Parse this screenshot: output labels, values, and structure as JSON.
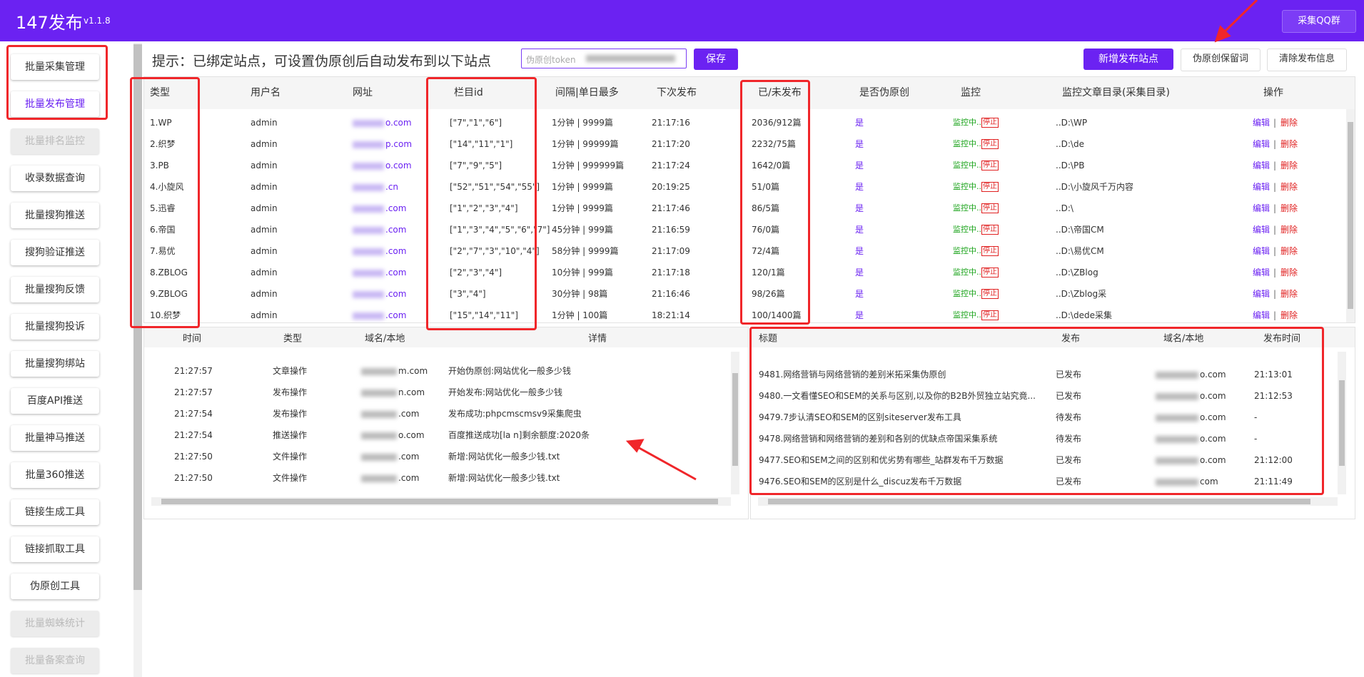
{
  "header": {
    "title": "147发布",
    "version": "v1.1.8",
    "qq_button": "采集QQ群"
  },
  "sidebar": [
    {
      "label": "批量采集管理",
      "disabled": false
    },
    {
      "label": "批量发布管理",
      "disabled": false
    },
    {
      "label": "批量排名监控",
      "disabled": true
    },
    {
      "label": "收录数据查询",
      "disabled": false
    },
    {
      "label": "批量搜狗推送",
      "disabled": false
    },
    {
      "label": "搜狗验证推送",
      "disabled": false
    },
    {
      "label": "批量搜狗反馈",
      "disabled": false
    },
    {
      "label": "批量搜狗投诉",
      "disabled": false
    },
    {
      "label": "批量搜狗绑站",
      "disabled": false
    },
    {
      "label": "百度API推送",
      "disabled": false
    },
    {
      "label": "批量神马推送",
      "disabled": false
    },
    {
      "label": "批量360推送",
      "disabled": false
    },
    {
      "label": "链接生成工具",
      "disabled": false
    },
    {
      "label": "链接抓取工具",
      "disabled": false
    },
    {
      "label": "伪原创工具",
      "disabled": false
    },
    {
      "label": "批量蜘蛛统计",
      "disabled": true
    },
    {
      "label": "批量备案查询",
      "disabled": true
    }
  ],
  "toolbar": {
    "hint": "提示：已绑定站点，可设置伪原创后自动发布到以下站点",
    "token_placeholder": "伪原创token",
    "save": "保存",
    "buttons": [
      "新增发布站点",
      "伪原创保留词",
      "清除发布信息"
    ]
  },
  "sites": {
    "headers": [
      "类型",
      "用户名",
      "网址",
      "栏目id",
      "间隔|单日最多",
      "下次发布",
      "已/未发布",
      "是否伪原创",
      "监控",
      "监控文章目录(采集目录)",
      "操作"
    ],
    "rows": [
      {
        "type": "1.WP",
        "user": "admin",
        "url": "o.com",
        "ids": "[\"7\",\"1\",\"6\"]",
        "interval": "1分钟 | 9999篇",
        "next": "21:17:16",
        "published": "2036/912篇",
        "pseudo": "是",
        "monitor": "监控中..",
        "stop": "停止",
        "dir": "..D:\\WP",
        "edit": "编辑",
        "sep": "|",
        "delete": "删除"
      },
      {
        "type": "2.织梦",
        "user": "admin",
        "url": "p.com",
        "ids": "[\"14\",\"11\",\"1\"]",
        "interval": "1分钟 | 99999篇",
        "next": "21:17:20",
        "published": "2232/75篇",
        "pseudo": "是",
        "monitor": "监控中..",
        "stop": "停止",
        "dir": "..D:\\de",
        "edit": "编辑",
        "sep": "|",
        "delete": "删除"
      },
      {
        "type": "3.PB",
        "user": "admin",
        "url": "o.com",
        "ids": "[\"7\",\"9\",\"5\"]",
        "interval": "1分钟 | 999999篇",
        "next": "21:17:24",
        "published": "1642/0篇",
        "pseudo": "是",
        "monitor": "监控中..",
        "stop": "停止",
        "dir": "..D:\\PB",
        "edit": "编辑",
        "sep": "|",
        "delete": "删除"
      },
      {
        "type": "4.小旋风",
        "user": "admin",
        "url": ".cn",
        "ids": "[\"52\",\"51\",\"54\",\"55\"]",
        "interval": "1分钟 | 9999篇",
        "next": "20:19:25",
        "published": "51/0篇",
        "pseudo": "是",
        "monitor": "监控中..",
        "stop": "停止",
        "dir": "..D:\\小旋风千万内容",
        "edit": "编辑",
        "sep": "|",
        "delete": "删除"
      },
      {
        "type": "5.迅睿",
        "user": "admin",
        "url": ".com",
        "ids": "[\"1\",\"2\",\"3\",\"4\"]",
        "interval": "1分钟 | 9999篇",
        "next": "21:17:46",
        "published": "86/5篇",
        "pseudo": "是",
        "monitor": "监控中..",
        "stop": "停止",
        "dir": "..D:\\",
        "edit": "编辑",
        "sep": "|",
        "delete": "删除"
      },
      {
        "type": "6.帝国",
        "user": "admin",
        "url": ".com",
        "ids": "[\"1\",\"3\",\"4\",\"5\",\"6\",\"7\"]",
        "interval": "45分钟 | 999篇",
        "next": "21:16:59",
        "published": "76/0篇",
        "pseudo": "是",
        "monitor": "监控中..",
        "stop": "停止",
        "dir": "..D:\\帝国CM",
        "edit": "编辑",
        "sep": "|",
        "delete": "删除"
      },
      {
        "type": "7.易优",
        "user": "admin",
        "url": ".com",
        "ids": "[\"2\",\"7\",\"3\",\"10\",\"4\"]",
        "interval": "58分钟 | 9999篇",
        "next": "21:17:09",
        "published": "72/4篇",
        "pseudo": "是",
        "monitor": "监控中..",
        "stop": "停止",
        "dir": "..D:\\易优CM",
        "edit": "编辑",
        "sep": "|",
        "delete": "删除"
      },
      {
        "type": "8.ZBLOG",
        "user": "admin",
        "url": ".com",
        "ids": "[\"2\",\"3\",\"4\"]",
        "interval": "10分钟 | 999篇",
        "next": "21:17:18",
        "published": "120/1篇",
        "pseudo": "是",
        "monitor": "监控中..",
        "stop": "停止",
        "dir": "..D:\\ZBlog",
        "edit": "编辑",
        "sep": "|",
        "delete": "删除"
      },
      {
        "type": "9.ZBLOG",
        "user": "admin",
        "url": ".com",
        "ids": "[\"3\",\"4\"]",
        "interval": "30分钟 | 98篇",
        "next": "21:16:46",
        "published": "98/26篇",
        "pseudo": "是",
        "monitor": "监控中..",
        "stop": "停止",
        "dir": "..D:\\Zblog采",
        "edit": "编辑",
        "sep": "|",
        "delete": "删除"
      },
      {
        "type": "10.织梦",
        "user": "admin",
        "url": ".com",
        "ids": "[\"15\",\"14\",\"11\"]",
        "interval": "1分钟 | 100篇",
        "next": "18:21:14",
        "published": "100/1400篇",
        "pseudo": "是",
        "monitor": "监控中..",
        "stop": "停止",
        "dir": "..D:\\dede采集",
        "edit": "编辑",
        "sep": "|",
        "delete": "删除"
      }
    ]
  },
  "log": {
    "headers": [
      "时间",
      "类型",
      "域名/本地",
      "详情"
    ],
    "rows": [
      [
        "21:27:57",
        "文章操作",
        "m.com",
        "开始伪原创:网站优化一般多少钱"
      ],
      [
        "21:27:57",
        "发布操作",
        "n.com",
        "开始发布:网站优化一般多少钱"
      ],
      [
        "21:27:54",
        "发布操作",
        ".com",
        "发布成功:phpcmscmsv9采集爬虫"
      ],
      [
        "21:27:54",
        "推送操作",
        "o.com",
        "百度推送成功[la    n]剩余额度:2020条"
      ],
      [
        "21:27:50",
        "文件操作",
        ".com",
        "新增:网站优化一般多少钱.txt"
      ],
      [
        "21:27:50",
        "文件操作",
        ".com",
        "新增:网站优化一般多少钱.txt"
      ]
    ]
  },
  "articles": {
    "headers": [
      "标题",
      "发布",
      "域名/本地",
      "发布时间"
    ],
    "rows": [
      [
        "9481.网络营销与网络营销的差别米拓采集伪原创",
        "已发布",
        "o.com",
        "21:13:01"
      ],
      [
        "9480.一文看懂SEO和SEM的关系与区别,以及你的B2B外贸独立站究竟...",
        "已发布",
        "o.com",
        "21:12:53"
      ],
      [
        "9479.7步认清SEO和SEM的区别siteserver发布工具",
        "待发布",
        "o.com",
        "-"
      ],
      [
        "9478.网络营销和网络营销的差别和各别的优缺点帝国采集系统",
        "待发布",
        "o.com",
        "-"
      ],
      [
        "9477.SEO和SEM之间的区别和优劣势有哪些_站群发布千万数据",
        "已发布",
        "o.com",
        "21:12:00"
      ],
      [
        "9476.SEO和SEM的区别是什么_discuz发布千万数据",
        "已发布",
        "com",
        "21:11:49"
      ]
    ]
  }
}
